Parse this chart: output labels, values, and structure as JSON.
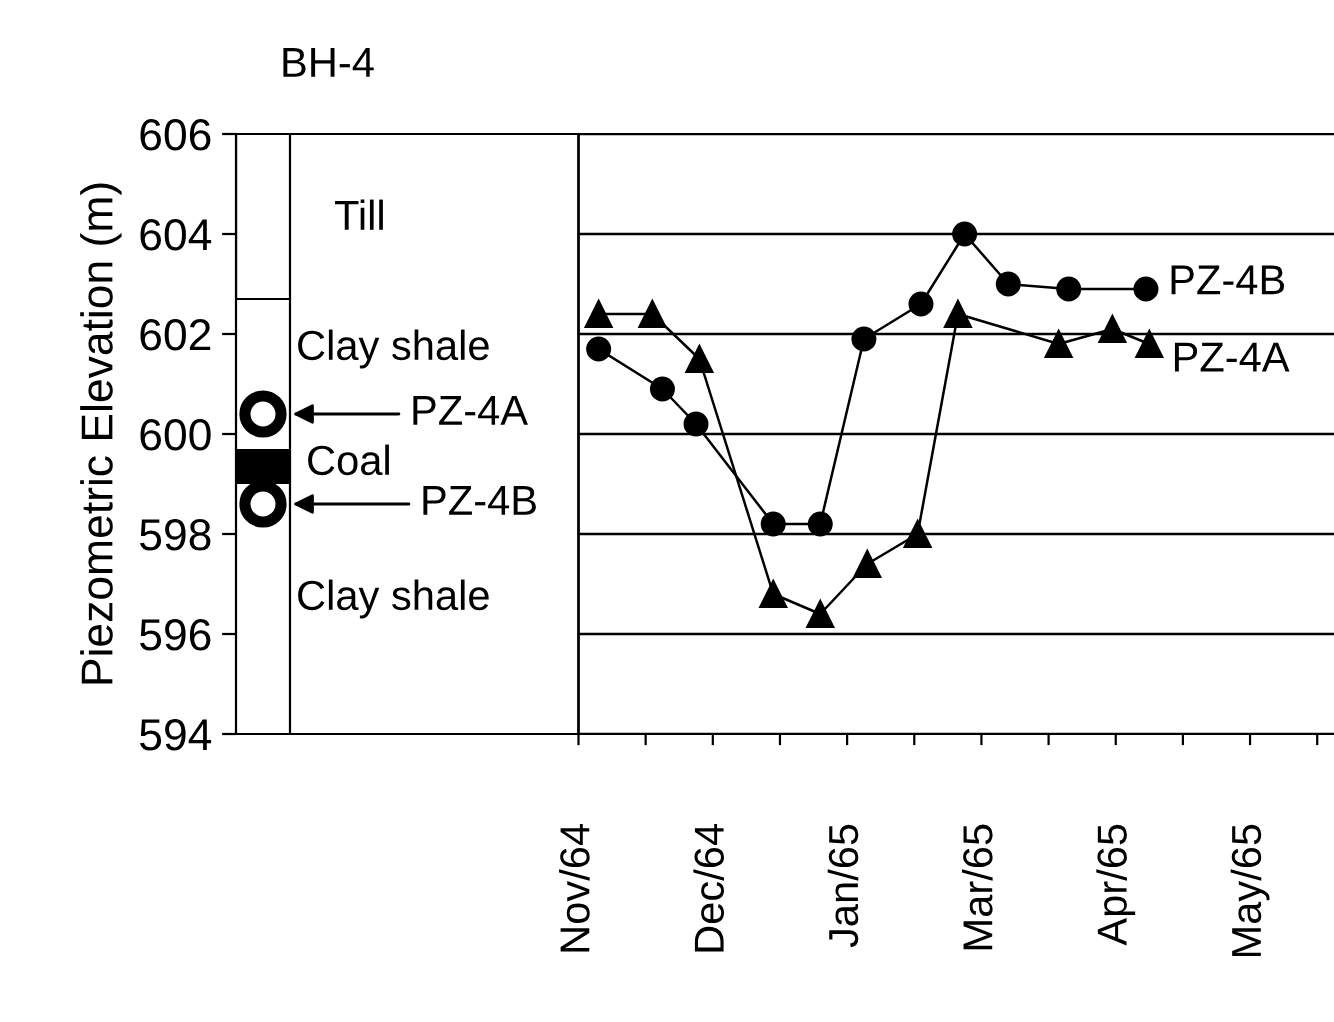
{
  "chart_data": {
    "type": "line",
    "title": "BH-4",
    "ylabel": "Piezometric Elevation (m)",
    "x": [
      "1964-11-07",
      "1964-11-26",
      "1964-12-06",
      "1964-12-29",
      "1965-01-12",
      "1965-01-25",
      "1965-02-11",
      "1965-02-24",
      "1965-03-09",
      "1965-03-27",
      "1965-04-19"
    ],
    "series": [
      {
        "name": "PZ-4B",
        "color": "#000000",
        "marker": "circle",
        "values": [
          601.7,
          600.9,
          600.2,
          598.2,
          598.2,
          601.9,
          602.6,
          604.0,
          603.0,
          602.9,
          602.9
        ]
      },
      {
        "name": "PZ-4A",
        "color": "#000000",
        "marker": "triangle",
        "x": [
          "1964-11-07",
          "1964-11-23",
          "1964-12-07",
          "1964-12-29",
          "1965-01-12",
          "1965-01-26",
          "1965-02-10",
          "1965-02-22",
          "1965-03-24",
          "1965-04-09",
          "1965-04-20"
        ],
        "values": [
          602.4,
          602.4,
          601.5,
          596.8,
          596.4,
          597.4,
          598.0,
          602.4,
          601.8,
          602.1,
          601.8
        ]
      }
    ],
    "xlim": [
      "1964-07-22",
      "1965-06-14"
    ],
    "ref_lines": [
      {
        "axis": "x",
        "value": "1964-11-01",
        "color": "#000000",
        "line_style": "solid"
      }
    ],
    "xticks": [
      {
        "value": "1964-11-01",
        "label": "Nov/64"
      },
      {
        "value": "1964-11-21",
        "label": null
      },
      {
        "value": "1964-12-11",
        "label": "Dec/64"
      },
      {
        "value": "1964-12-31",
        "label": null
      },
      {
        "value": "1965-01-20",
        "label": "Jan/65"
      },
      {
        "value": "1965-02-09",
        "label": null
      },
      {
        "value": "1965-03-01",
        "label": "Mar/65"
      },
      {
        "value": "1965-03-21",
        "label": null
      },
      {
        "value": "1965-04-10",
        "label": "Apr/65"
      },
      {
        "value": "1965-04-30",
        "label": null
      },
      {
        "value": "1965-05-20",
        "label": "May/65"
      },
      {
        "value": "1965-06-09",
        "label": null
      }
    ],
    "ylim": [
      594,
      606
    ],
    "yticks": [
      594,
      596,
      598,
      600,
      602,
      604,
      606
    ],
    "grid": "y",
    "legend": false,
    "line_style": "solid",
    "annotations": [
      "Till",
      "Clay shale",
      "PZ-4A",
      "Coal",
      "PZ-4B",
      "Clay shale"
    ]
  }
}
